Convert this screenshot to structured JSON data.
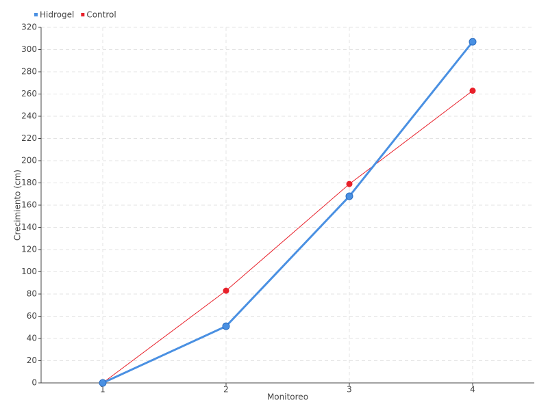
{
  "chart_data": {
    "type": "line",
    "categories": [
      "1",
      "2",
      "3",
      "4"
    ],
    "x_label": "Monitoreo",
    "y_label": "Crecimiento (cm)",
    "series": [
      {
        "name": "Hidrogel",
        "color": "#4a90e2",
        "values": [
          0,
          51,
          168,
          307
        ]
      },
      {
        "name": "Control",
        "color": "#e8202a",
        "values": [
          0,
          83,
          179,
          263
        ]
      }
    ],
    "ylim": [
      0,
      320
    ],
    "yticks": [
      0,
      20,
      40,
      60,
      80,
      100,
      120,
      140,
      160,
      180,
      200,
      220,
      240,
      260,
      280,
      300,
      320
    ],
    "grid": true,
    "legend": "top-left"
  }
}
